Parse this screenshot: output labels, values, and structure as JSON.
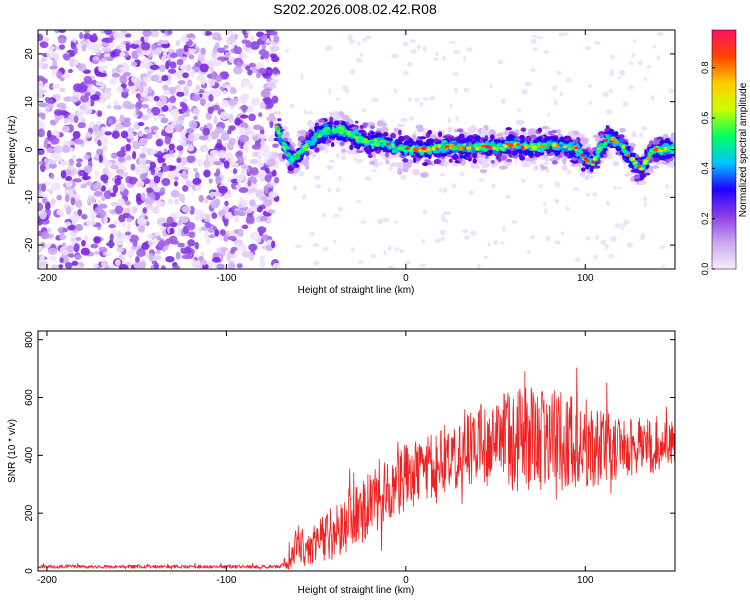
{
  "title": "S202.2026.008.02.42.R08",
  "chart_data": [
    {
      "type": "heatmap",
      "name": "spectrogram",
      "xlabel": "Height of straight line (km)",
      "ylabel": "Frequency (Hz)",
      "xlim": [
        -205,
        150
      ],
      "ylim": [
        -25,
        25
      ],
      "xticks": [
        -200,
        -100,
        0,
        100
      ],
      "xticklabels": [
        "-200",
        "-100",
        "0",
        "100"
      ],
      "yticks": [
        -20,
        -10,
        0,
        10,
        20
      ],
      "yticklabels": [
        "-20",
        "-10",
        "0",
        "10",
        "20"
      ],
      "noise_region_x": [
        -205,
        -72
      ],
      "signal_onset_x": -72,
      "ridge": {
        "x": [
          -72,
          -68,
          -64,
          -60,
          -55,
          -50,
          -45,
          -40,
          -35,
          -30,
          -25,
          -20,
          -15,
          -10,
          -5,
          0,
          10,
          20,
          30,
          40,
          50,
          60,
          70,
          80,
          90,
          96,
          100,
          104,
          108,
          112,
          116,
          120,
          124,
          128,
          132,
          136,
          140,
          145,
          150
        ],
        "y": [
          5,
          1,
          -2,
          -1,
          1,
          3,
          4,
          4,
          4,
          3,
          2,
          1.5,
          1.5,
          1,
          0.5,
          0,
          0,
          0.5,
          0.5,
          0.5,
          0.5,
          1,
          0.5,
          1,
          0.5,
          0,
          -2,
          -3,
          0,
          2,
          2,
          1,
          -1,
          -3,
          -4,
          -1,
          0,
          0,
          0
        ]
      },
      "colorbar": {
        "label": "Normalized spectral amplitude",
        "range": [
          0,
          0.95
        ],
        "ticks": [
          0.0,
          0.2,
          0.4,
          0.6,
          0.8
        ],
        "ticklabels": [
          "0.0",
          "0.2",
          "0.4",
          "0.6",
          "0.8"
        ],
        "colors": [
          "#f5ecfb",
          "#c9a8ee",
          "#8a3ee6",
          "#2200ff",
          "#00c8ff",
          "#00ff60",
          "#c8ff00",
          "#ffcc00",
          "#ff4400",
          "#ff1066"
        ]
      }
    },
    {
      "type": "line",
      "name": "snr",
      "xlabel": "Height of straight line (km)",
      "ylabel": "SNR (10 * v/v)",
      "xlim": [
        -205,
        150
      ],
      "ylim": [
        0,
        830
      ],
      "xticks": [
        -200,
        -100,
        0,
        100
      ],
      "xticklabels": [
        "-200",
        "-100",
        "0",
        "100"
      ],
      "yticks": [
        0,
        200,
        400,
        600,
        800
      ],
      "yticklabels": [
        "0",
        "200",
        "400",
        "600",
        "800"
      ],
      "color": "#ee2222",
      "envelope": {
        "x": [
          -205,
          -70,
          -65,
          -60,
          -55,
          -50,
          -40,
          -30,
          -20,
          -10,
          0,
          10,
          20,
          30,
          40,
          50,
          60,
          70,
          80,
          90,
          100,
          110,
          120,
          130,
          140,
          150
        ],
        "mean": [
          15,
          15,
          40,
          100,
          70,
          110,
          130,
          180,
          230,
          280,
          320,
          350,
          380,
          420,
          430,
          450,
          440,
          460,
          460,
          450,
          440,
          430,
          430,
          430,
          430,
          440
        ],
        "spread": [
          6,
          6,
          40,
          70,
          60,
          80,
          90,
          110,
          110,
          110,
          120,
          110,
          120,
          130,
          150,
          170,
          180,
          190,
          180,
          170,
          160,
          130,
          110,
          100,
          90,
          80
        ]
      }
    }
  ]
}
